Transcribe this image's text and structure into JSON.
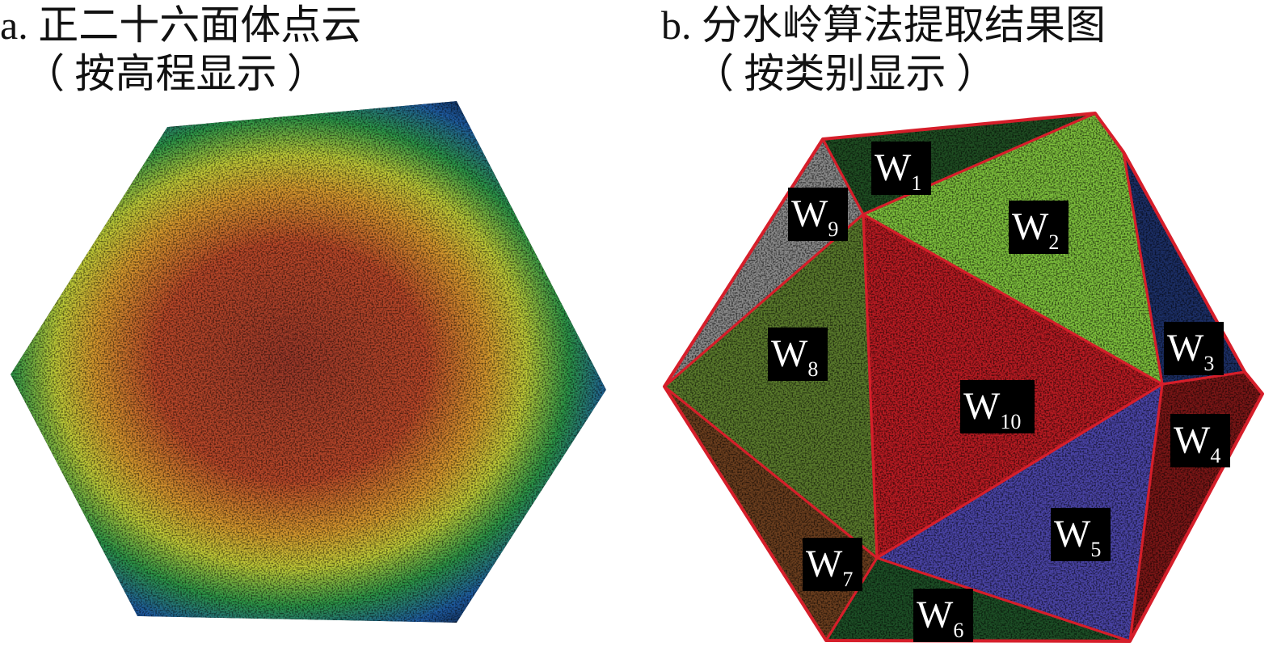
{
  "panel_a": {
    "title": "a. 正二十六面体点云",
    "subtitle": "（ 按高程显示 ）"
  },
  "panel_b": {
    "title": "b. 分水岭算法提取结果图",
    "subtitle": "（ 按类别显示 ）",
    "regions": [
      {
        "id": "W1",
        "main": "W",
        "sub": "1",
        "color": "#1f4d22"
      },
      {
        "id": "W2",
        "main": "W",
        "sub": "2",
        "color": "#7dbf3c"
      },
      {
        "id": "W3",
        "main": "W",
        "sub": "3",
        "color": "#1c2f66"
      },
      {
        "id": "W4",
        "main": "W",
        "sub": "4",
        "color": "#7a1616"
      },
      {
        "id": "W5",
        "main": "W",
        "sub": "5",
        "color": "#4a44a6"
      },
      {
        "id": "W6",
        "main": "W",
        "sub": "6",
        "color": "#1d4f26"
      },
      {
        "id": "W7",
        "main": "W",
        "sub": "7",
        "color": "#6b3e1e"
      },
      {
        "id": "W8",
        "main": "W",
        "sub": "8",
        "color": "#5a7a2c"
      },
      {
        "id": "W9",
        "main": "W",
        "sub": "9",
        "color": "#8a8a8a"
      },
      {
        "id": "W10",
        "main": "W",
        "sub": "10",
        "color": "#b81b22"
      }
    ],
    "edge_color": "#d61e2a"
  },
  "elevation_colors": [
    "#0d1a3a",
    "#1f5fa8",
    "#2e9c4a",
    "#c8d43a",
    "#e0a030",
    "#c04a2a",
    "#a23a2a"
  ]
}
